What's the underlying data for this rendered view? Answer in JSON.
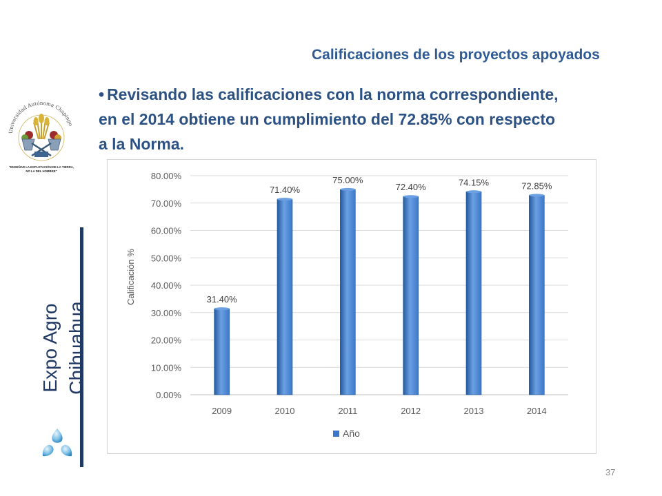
{
  "slide": {
    "title": "Calificaciones de los proyectos apoyados",
    "bullet_marker": "•",
    "bullet_lines": [
      "Revisando las calificaciones con la norma correspondiente,",
      "en el 2014 obtiene un cumplimiento del 72.85% con respecto",
      "a la Norma."
    ],
    "sidebar_title_lines": [
      "Expo Agro",
      "Chihuahua"
    ],
    "page_number": "37"
  },
  "logo": {
    "text": "Universidad Autónoma Chapingo",
    "motto_line1": "\"ENSEÑAR LA EXPLOTACIÓN DE LA TIERRA,",
    "motto_line2": "NO LA DEL HOMBRE\""
  },
  "colors": {
    "title": "#2f5a94",
    "bullet": "#2c5285",
    "bar": "#3b78c9",
    "bar_highlight": "#6ba0e2",
    "bar_dark": "#245a9e",
    "sidebar": "#1f3864"
  },
  "icons": {
    "logo": "university-seal-icon",
    "drops": "water-drops-icon",
    "legend": "legend-swatch-icon"
  },
  "chart_data": {
    "type": "bar",
    "categories": [
      "2009",
      "2010",
      "2011",
      "2012",
      "2013",
      "2014"
    ],
    "series": [
      {
        "name": "Año",
        "values": [
          31.4,
          71.4,
          75.0,
          72.4,
          74.15,
          72.85
        ],
        "labels": [
          "31.40%",
          "71.40%",
          "75.00%",
          "72.40%",
          "74.15%",
          "72.85%"
        ]
      }
    ],
    "ylabel": "Calificación %",
    "ylim": [
      0,
      80
    ],
    "ytick_labels": [
      "0.00%",
      "10.00%",
      "20.00%",
      "30.00%",
      "40.00%",
      "50.00%",
      "60.00%",
      "70.00%",
      "80.00%"
    ],
    "grid": true,
    "legend_position": "bottom"
  }
}
